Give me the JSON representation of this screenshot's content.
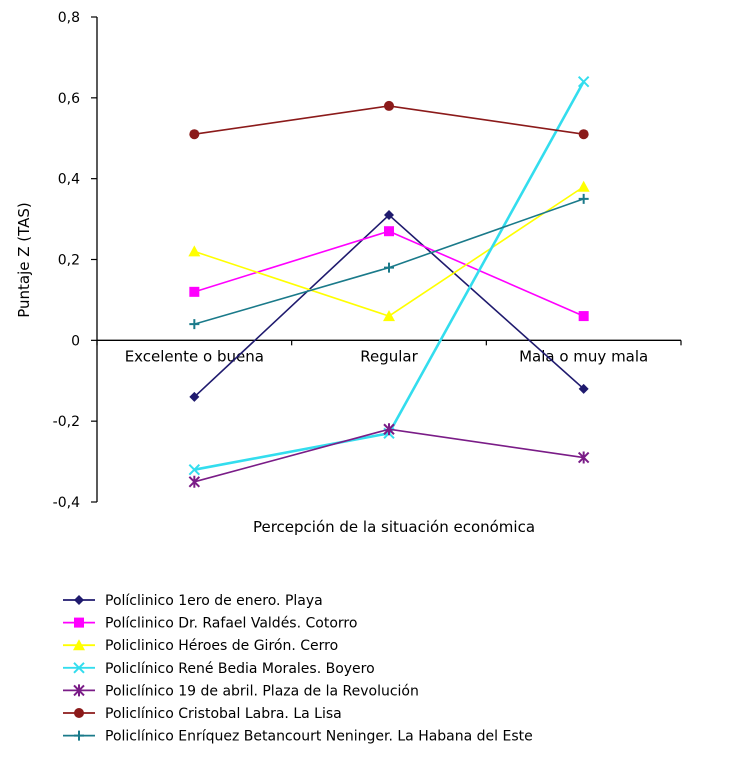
{
  "chart_data": {
    "type": "line",
    "title": "",
    "xlabel": "Percepción de la situación económica",
    "ylabel": "Puntaje Z (TAS)",
    "categories": [
      "Excelente o buena",
      "Regular",
      "Mala o muy mala"
    ],
    "ylim": [
      -0.4,
      0.8
    ],
    "yticks": [
      "0,8",
      "0,6",
      "0,4",
      "0,2",
      "0",
      "-0,2",
      "-0,4"
    ],
    "ytick_values": [
      0.8,
      0.6,
      0.4,
      0.2,
      0,
      -0.2,
      -0.4
    ],
    "grid": false,
    "legend_position": "bottom",
    "series": [
      {
        "name": "Políclinico 1ero de enero. Playa",
        "values": [
          -0.14,
          0.31,
          -0.12
        ],
        "color": "#1f1a6e",
        "marker": "diamond"
      },
      {
        "name": "Políclinico  Dr. Rafael Valdés. Cotorro",
        "values": [
          0.12,
          0.27,
          0.06
        ],
        "color": "#ff00ff",
        "marker": "square"
      },
      {
        "name": "Policlinico Héroes de Girón. Cerro",
        "values": [
          0.22,
          0.06,
          0.38
        ],
        "color": "#ffff00",
        "marker": "triangle"
      },
      {
        "name": "Policlínico René Bedia Morales. Boyero",
        "values": [
          -0.32,
          -0.23,
          0.64
        ],
        "color": "#33ddee",
        "marker": "x"
      },
      {
        "name": "Policlínico 19 de abril. Plaza de la Revolución",
        "values": [
          -0.35,
          -0.22,
          -0.29
        ],
        "color": "#7a1c87",
        "marker": "star"
      },
      {
        "name": "Policlínico Cristobal Labra. La Lisa",
        "values": [
          0.51,
          0.58,
          0.51
        ],
        "color": "#8b1a1a",
        "marker": "circle"
      },
      {
        "name": "Policlínico Enríquez Betancourt Neninger. La Habana del Este",
        "values": [
          0.04,
          0.18,
          0.35
        ],
        "color": "#1a7a8a",
        "marker": "plus"
      }
    ]
  }
}
